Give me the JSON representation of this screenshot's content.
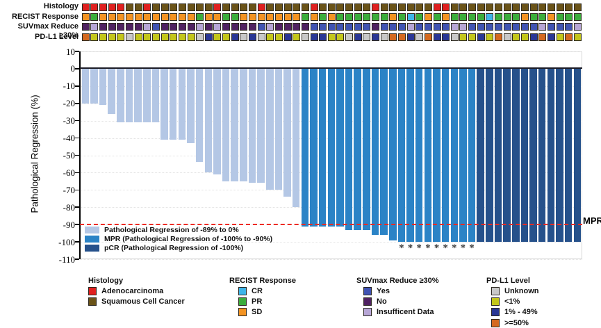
{
  "figure": {
    "type": "oncology waterfall plot with clinical annotation tracks",
    "mpr_line_label": "MPR"
  },
  "colors": {
    "bar_light": "#b4c7e5",
    "bar_mpr": "#2b83c6",
    "bar_pcr": "#26518b",
    "red_dashed_line": "#ee2b24",
    "zero_line": "#1b1b26"
  },
  "tracks": {
    "palette": {
      "A": "#e0201f",
      "S": "#6a5318",
      "C": "#3eb4e8",
      "P": "#3bad3b",
      "D": "#f39322",
      "Y": "#4053b2",
      "N": "#4f2161",
      "I": "#b7a6d6",
      "U": "#c8c8c8",
      "L": "#c3c61a",
      "M": "#2a3795",
      "H": "#d4691f"
    },
    "rows": [
      {
        "label": "Histology",
        "cells": "AAAAASSASSSSSSSASSSSASSSSSASSSSSSASSSSSSAASSSSSSSSSSSSSSS"
      },
      {
        "label": "RECIST Response",
        "cells": "DPDDDDDDDDDDDPDDPPDDDDDDDPDPDPPPPPPDPCPDPDPPPPCPPPDPPDPPP"
      },
      {
        "label": "SUVmax Reduce ≥30%",
        "cells": "NINNNNNIYNNNNININNNNYINNNNYYYYYYYNYYYIYYYYIIYYYYYYYYIYYYI"
      },
      {
        "label": "PD-L1 Level",
        "cells": "HLLLLULLLLLLLUMLLMUMULLMLUMMLLUMUMUHHMUHMMULLMLHULLMHMLHL"
      }
    ]
  },
  "chart_data": {
    "type": "bar",
    "subtype": "waterfall",
    "title": "",
    "xlabel": "",
    "ylabel": "Pathological Regression (%)",
    "ylim": [
      -110,
      10
    ],
    "yticks": [
      10,
      0,
      -10,
      -20,
      -30,
      -40,
      -50,
      -60,
      -70,
      -80,
      -90,
      -100,
      -110
    ],
    "grid": "dotted horizontal",
    "n_bars": 57,
    "values": [
      -20,
      -20,
      -21,
      -26,
      -31,
      -31,
      -31,
      -31,
      -31,
      -41,
      -41,
      -41,
      -43,
      -54,
      -60,
      -61,
      -65,
      -65,
      -65,
      -66,
      -66,
      -70,
      -70,
      -74,
      -80,
      -91,
      -91,
      -91,
      -91,
      -91,
      -93,
      -93,
      -93,
      -96,
      -96,
      -99,
      -100,
      -100,
      -100,
      -100,
      -100,
      -100,
      -100,
      -100,
      -100,
      -100,
      -100,
      -100,
      -100,
      -100,
      -100,
      -100,
      -100,
      -100,
      -100,
      -100,
      -100
    ],
    "groups": "RRRRRRRRRRRRRRRRRRRRRRRRRMMMMMMMMMMMMMMMMMMMMPPPPPPPPPPPP",
    "group_colors": {
      "R": "#b4c7e5",
      "M": "#2b83c6",
      "P": "#26518b"
    },
    "asterisk_bar_indices": [
      37,
      38,
      39,
      40,
      41,
      42,
      43,
      44,
      45
    ],
    "threshold_line": {
      "y": -90,
      "label": "MPR",
      "style": "red dashed"
    },
    "legend_position": "inside lower-left",
    "legend": [
      {
        "key": "R",
        "label": "Pathological Regression of -89% to 0%"
      },
      {
        "key": "M",
        "label": "MPR (Pathological Regression of -100% to -90%)"
      },
      {
        "key": "P",
        "label": "pCR (Pathological Regression of -100%)"
      }
    ]
  },
  "bottom_legends": [
    {
      "header": "Histology",
      "items": [
        {
          "label": "Adenocarcinoma",
          "color_key": "A"
        },
        {
          "label": "Squamous Cell Cancer",
          "color_key": "S"
        }
      ]
    },
    {
      "header": "RECIST Response",
      "items": [
        {
          "label": "CR",
          "color_key": "C"
        },
        {
          "label": "PR",
          "color_key": "P"
        },
        {
          "label": "SD",
          "color_key": "D"
        }
      ]
    },
    {
      "header": "SUVmax Reduce ≥30%",
      "items": [
        {
          "label": "Yes",
          "color_key": "Y"
        },
        {
          "label": "No",
          "color_key": "N"
        },
        {
          "label": "Insufficent Data",
          "color_key": "I"
        }
      ]
    },
    {
      "header": "PD-L1 Level",
      "items": [
        {
          "label": "Unknown",
          "color_key": "U"
        },
        {
          "label": "<1%",
          "color_key": "L"
        },
        {
          "label": "1% - 49%",
          "color_key": "M"
        },
        {
          "label": ">=50%",
          "color_key": "H"
        }
      ]
    }
  ]
}
